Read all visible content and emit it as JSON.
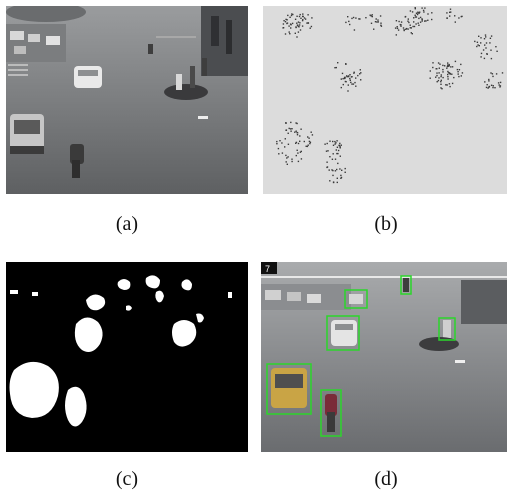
{
  "panels": [
    {
      "caption": "(a)"
    },
    {
      "caption": "(b)"
    },
    {
      "caption": "(c)"
    },
    {
      "caption": "(d)",
      "frame_counter": "7"
    }
  ],
  "colors": {
    "detection_box": "#2bd62b",
    "road": "#6f7173",
    "mask_fg": "#ffffff",
    "mask_bg": "#000000",
    "diff_bg": "#dcdcdc"
  }
}
